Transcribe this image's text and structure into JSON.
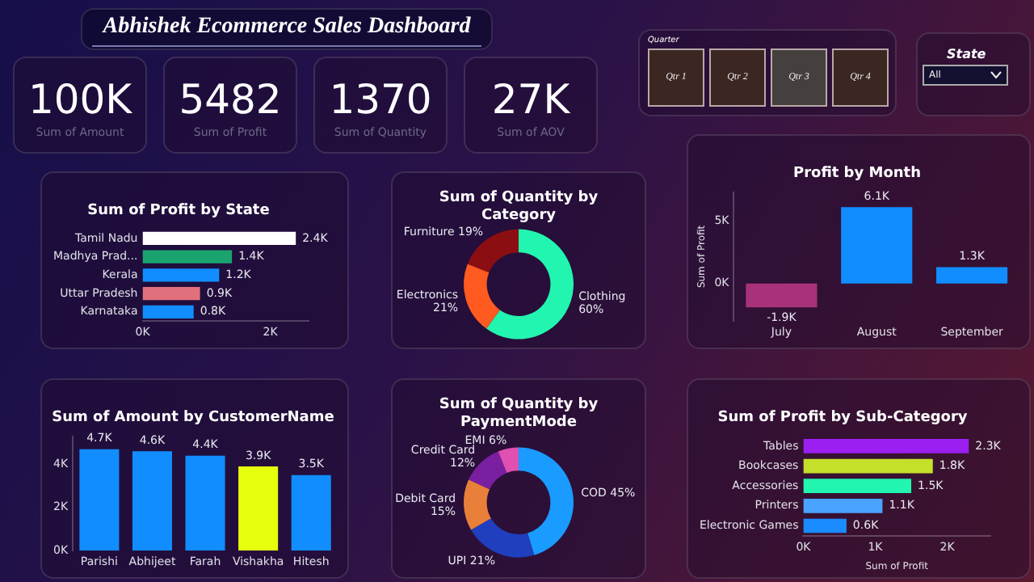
{
  "chart_data": [
    {
      "type": "other",
      "title": "Abhishek Ecommerce Sales Dashboard"
    },
    {
      "type": "other",
      "categories": [
        "Sum of Amount",
        "Sum of Profit",
        "Sum of Quantity",
        "Sum of AOV"
      ],
      "value_labels": [
        "100K",
        "5482",
        "1370",
        "27K"
      ]
    },
    {
      "type": "other",
      "title": "Quarter",
      "categories": [
        "Qtr 1",
        "Qtr 2",
        "Qtr 3",
        "Qtr 4"
      ],
      "colors": [
        "#3b2622",
        "#3b2622",
        "#45403e",
        "#3b2622"
      ]
    },
    {
      "type": "other",
      "title": "State",
      "annotations": [
        "All"
      ]
    },
    {
      "type": "bar",
      "orientation": "horizontal",
      "title": "Sum of Profit by State",
      "categories": [
        "Tamil Nadu",
        "Madhya Prad...",
        "Kerala",
        "Uttar Pradesh",
        "Karnataka"
      ],
      "values": [
        2400,
        1400,
        1200,
        900,
        800
      ],
      "colors": [
        "#ffffff",
        "#1aa36f",
        "#118dff",
        "#e0707c",
        "#118dff"
      ],
      "value_labels": [
        "2.4K",
        "1.4K",
        "1.2K",
        "0.9K",
        "0.8K"
      ],
      "xlim": [
        0,
        2600
      ],
      "xticks": [
        {
          "value": 0,
          "label": "0K"
        },
        {
          "value": 2000,
          "label": "2K"
        }
      ]
    },
    {
      "type": "donut",
      "title": "Sum of Quantity by Category",
      "categories": [
        "Clothing",
        "Electronics",
        "Furniture"
      ],
      "values": [
        60,
        21,
        19
      ],
      "colors": [
        "#22f5b0",
        "#ff5a1f",
        "#8b0f12"
      ],
      "value_labels": [
        "60%",
        "21%",
        "19%"
      ]
    },
    {
      "type": "bar",
      "title": "Profit by Month",
      "ylabel": "Sum of Profit",
      "categories": [
        "July",
        "August",
        "September"
      ],
      "values": [
        -1900,
        6100,
        1300
      ],
      "colors": [
        "#a8327a",
        "#118dff",
        "#118dff"
      ],
      "value_labels": [
        "-1.9K",
        "6.1K",
        "1.3K"
      ],
      "ylim": [
        -3000,
        7300
      ],
      "yticks": [
        {
          "value": 0,
          "label": "0K"
        },
        {
          "value": 5000,
          "label": "5K"
        }
      ]
    },
    {
      "type": "bar",
      "title": "Sum of Amount by CustomerName",
      "categories": [
        "Parishi",
        "Abhijeet",
        "Farah",
        "Vishakha",
        "Hitesh"
      ],
      "values": [
        4700,
        4600,
        4400,
        3900,
        3500
      ],
      "colors": [
        "#118dff",
        "#118dff",
        "#118dff",
        "#e6ff0d",
        "#118dff"
      ],
      "value_labels": [
        "4.7K",
        "4.6K",
        "4.4K",
        "3.9K",
        "3.5K"
      ],
      "ylim": [
        0,
        5300
      ],
      "yticks": [
        {
          "value": 0,
          "label": "0K"
        },
        {
          "value": 2000,
          "label": "2K"
        },
        {
          "value": 4000,
          "label": "4K"
        }
      ]
    },
    {
      "type": "donut",
      "title": "Sum of Quantity by PaymentMode",
      "categories": [
        "COD",
        "UPI",
        "Debit Card",
        "Credit Card",
        "EMI"
      ],
      "values": [
        45,
        21,
        15,
        12,
        6
      ],
      "colors": [
        "#1a9bff",
        "#1f3fbf",
        "#e8803a",
        "#7a1fa0",
        "#e050b0"
      ],
      "value_labels": [
        "45%",
        "21%",
        "15%",
        "12%",
        "6%"
      ]
    },
    {
      "type": "bar",
      "orientation": "horizontal",
      "title": "Sum of Profit by Sub-Category",
      "xlabel": "Sum of Profit",
      "categories": [
        "Tables",
        "Bookcases",
        "Accessories",
        "Printers",
        "Electronic Games"
      ],
      "values": [
        2300,
        1800,
        1500,
        1100,
        600
      ],
      "colors": [
        "#9b1ff0",
        "#c5e02a",
        "#22f5b0",
        "#4aa3ff",
        "#1a8cff"
      ],
      "value_labels": [
        "2.3K",
        "1.8K",
        "1.5K",
        "1.1K",
        "0.6K"
      ],
      "xlim": [
        0,
        2600
      ],
      "xticks": [
        {
          "value": 0,
          "label": "0K"
        },
        {
          "value": 1000,
          "label": "1K"
        },
        {
          "value": 2000,
          "label": "2K"
        }
      ]
    }
  ]
}
